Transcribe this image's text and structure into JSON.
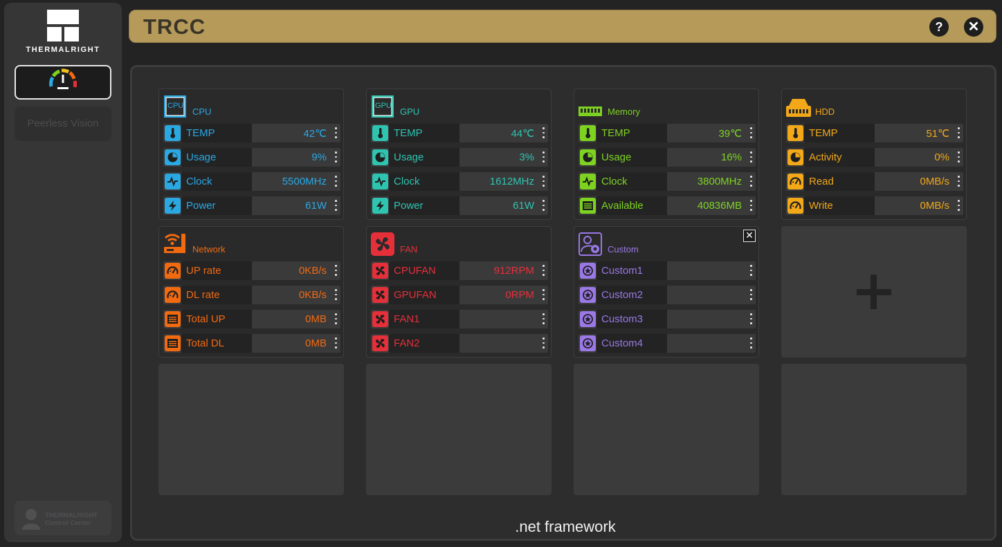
{
  "window": {
    "title": "TRCC"
  },
  "sidebar": {
    "brand": "THERMALRIGHT",
    "peerless_label": "Peerless Vision",
    "footer_line1": "THERMALRIGHT",
    "footer_line2": "Control Center"
  },
  "colors": {
    "cpu": "#2aa8e2",
    "gpu": "#2fc4b0",
    "memory": "#7ed321",
    "hdd": "#f2a819",
    "network": "#f26a10",
    "fan": "#e5303a",
    "custom": "#9a78e6"
  },
  "cards": {
    "cpu": {
      "label": "CPU",
      "icon_text": "CPU",
      "rows": [
        {
          "icon": "thermometer-icon",
          "label": "TEMP",
          "value": "42℃"
        },
        {
          "icon": "pie-chart-icon",
          "label": "Usage",
          "value": "9%"
        },
        {
          "icon": "pulse-icon",
          "label": "Clock",
          "value": "5500MHz"
        },
        {
          "icon": "lightning-icon",
          "label": "Power",
          "value": "61W"
        }
      ]
    },
    "gpu": {
      "label": "GPU",
      "icon_text": "GPU",
      "rows": [
        {
          "icon": "thermometer-icon",
          "label": "TEMP",
          "value": "44℃"
        },
        {
          "icon": "pie-chart-icon",
          "label": "Usage",
          "value": "3%"
        },
        {
          "icon": "pulse-icon",
          "label": "Clock",
          "value": "1612MHz"
        },
        {
          "icon": "lightning-icon",
          "label": "Power",
          "value": "61W"
        }
      ]
    },
    "memory": {
      "label": "Memory",
      "rows": [
        {
          "icon": "thermometer-icon",
          "label": "TEMP",
          "value": "39℃"
        },
        {
          "icon": "pie-chart-icon",
          "label": "Usage",
          "value": "16%"
        },
        {
          "icon": "pulse-icon",
          "label": "Clock",
          "value": "3800MHz"
        },
        {
          "icon": "list-icon",
          "label": "Available",
          "value": "40836MB"
        }
      ]
    },
    "hdd": {
      "label": "HDD",
      "rows": [
        {
          "icon": "thermometer-icon",
          "label": "TEMP",
          "value": "51℃"
        },
        {
          "icon": "pie-chart-icon",
          "label": "Activity",
          "value": "0%"
        },
        {
          "icon": "gauge-icon",
          "label": "Read",
          "value": "0MB/s"
        },
        {
          "icon": "gauge-icon",
          "label": "Write",
          "value": "0MB/s"
        }
      ]
    },
    "network": {
      "label": "Network",
      "rows": [
        {
          "icon": "gauge-icon",
          "label": "UP rate",
          "value": "0KB/s"
        },
        {
          "icon": "gauge-icon",
          "label": "DL rate",
          "value": "0KB/s"
        },
        {
          "icon": "list-icon",
          "label": "Total UP",
          "value": "0MB"
        },
        {
          "icon": "list-icon",
          "label": "Total DL",
          "value": "0MB"
        }
      ]
    },
    "fan": {
      "label": "FAN",
      "rows": [
        {
          "icon": "fan-icon",
          "label": "CPUFAN",
          "value": "912RPM"
        },
        {
          "icon": "fan-icon",
          "label": "GPUFAN",
          "value": "0RPM"
        },
        {
          "icon": "fan-icon",
          "label": "FAN1",
          "value": ""
        },
        {
          "icon": "fan-icon",
          "label": "FAN2",
          "value": ""
        }
      ]
    },
    "custom": {
      "label": "Custom",
      "rows": [
        {
          "icon": "custom-star-icon",
          "label": "Custom1",
          "value": ""
        },
        {
          "icon": "custom-star-icon",
          "label": "Custom2",
          "value": ""
        },
        {
          "icon": "custom-star-icon",
          "label": "Custom3",
          "value": ""
        },
        {
          "icon": "custom-star-icon",
          "label": "Custom4",
          "value": ""
        }
      ]
    }
  },
  "footer": {
    "text": ".net framework"
  }
}
